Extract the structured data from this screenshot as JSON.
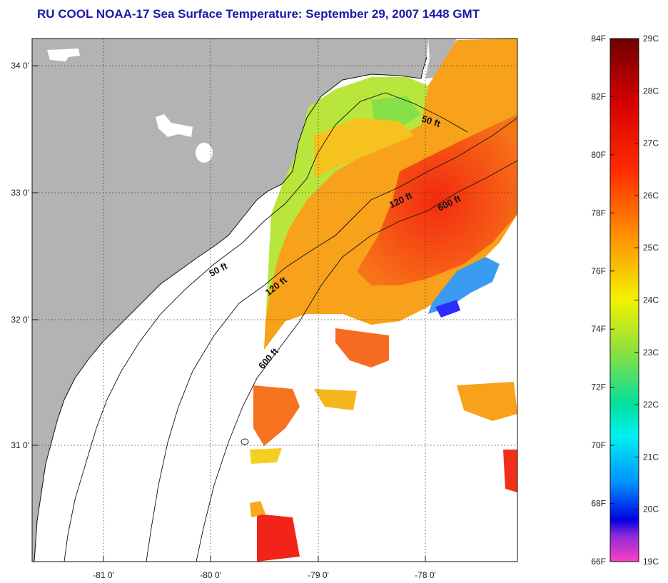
{
  "title": "RU COOL  NOAA-17  Sea Surface Temperature:  September 29, 2007 1448 GMT",
  "colors": {
    "land": "#b3b3b3",
    "title": "#1a1aa6",
    "clouds": "#ffffff"
  },
  "map": {
    "lon_labels": [
      "-81 0'",
      "-80 0'",
      "-79 0'",
      "-78 0'"
    ],
    "lat_labels": [
      "34 0'",
      "33 0'",
      "32 0'",
      "31 0'"
    ],
    "isobaths": [
      "50 ft",
      "50 ft",
      "120 ft",
      "120 ft",
      "600 ft",
      "600 ft"
    ]
  },
  "colorbar": {
    "f_labels": [
      "84F",
      "82F",
      "80F",
      "78F",
      "76F",
      "74F",
      "72F",
      "70F",
      "68F",
      "66F"
    ],
    "c_labels": [
      "29C",
      "28C",
      "27C",
      "26C",
      "25C",
      "24C",
      "23C",
      "22C",
      "21C",
      "20C",
      "19C"
    ],
    "f_range": [
      66,
      84
    ],
    "c_range": [
      19,
      29
    ]
  }
}
